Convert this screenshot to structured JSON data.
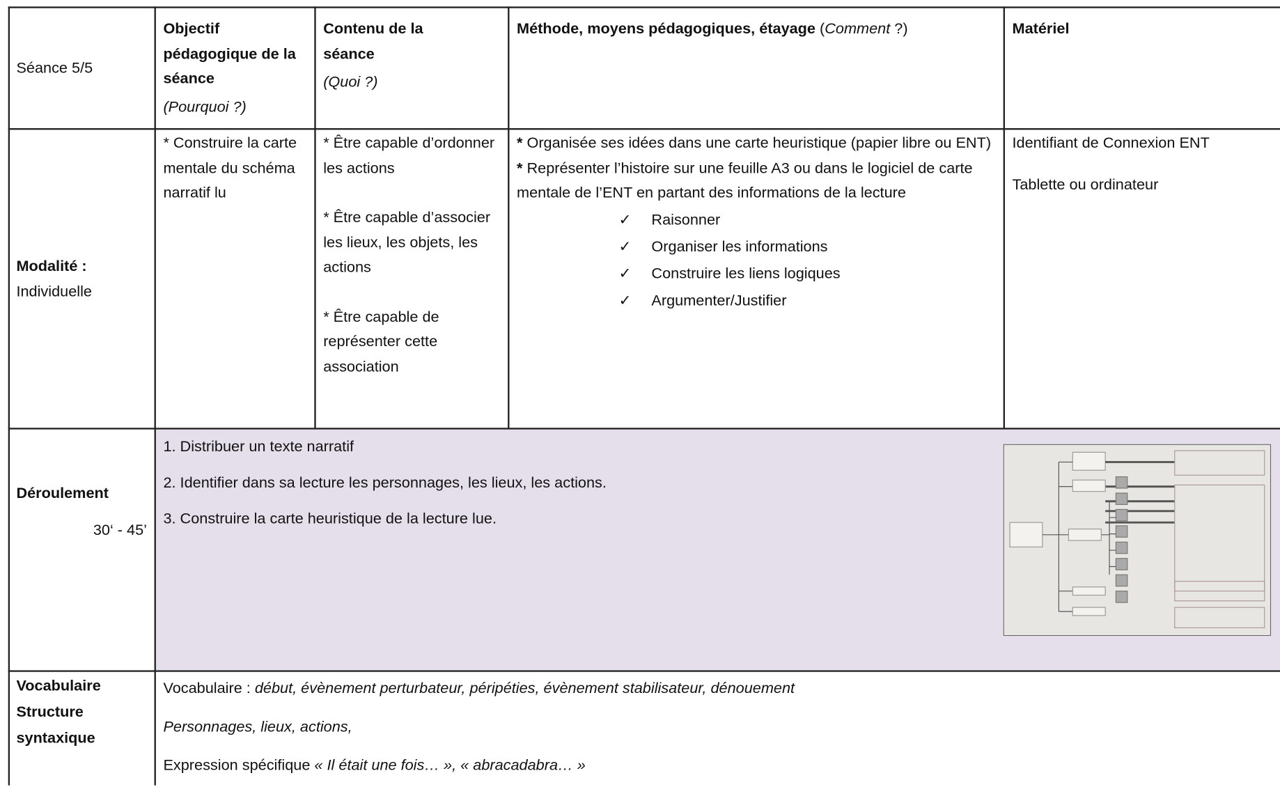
{
  "table": {
    "header": {
      "seance": "Séance 5/5",
      "objectif": {
        "title": "Objectif pédagogique de la séance",
        "note": "(Pourquoi ?)"
      },
      "contenu": {
        "title": "Contenu de la séance",
        "note": "(Quoi ?)"
      },
      "methode": {
        "title": "Méthode, moyens pédagogiques, étayage",
        "note_parts": [
          "(",
          "Comment",
          " ?)"
        ]
      },
      "materiel": "Matériel"
    },
    "modalite": {
      "label": "Modalité :",
      "value": "Individuelle",
      "objectif": "* Construire la carte mentale du schéma narratif lu",
      "contenu": [
        "* Être capable d’ordonner les actions",
        "* Être capable d’associer les lieux, les objets, les actions",
        "* Être capable de représenter cette association"
      ],
      "methode": [
        {
          "marker": "*",
          "text": " Organisée ses idées dans une carte heuristique (papier libre ou ENT)"
        },
        {
          "marker": "*",
          "text": " Représenter l’histoire sur une feuille A3 ou dans le logiciel de carte mentale de l’ENT en partant des informations de la lecture"
        }
      ],
      "checks": {
        "marker": "✓",
        "items": [
          "Raisonner",
          "Organiser les informations",
          "Construire les liens logiques",
          "Argumenter/Justifier"
        ]
      },
      "materiel": [
        "Identifiant de Connexion ENT",
        "Tablette ou ordinateur"
      ]
    },
    "deroulement": {
      "label": "Déroulement",
      "duration": "30‘ - 45’",
      "steps": [
        "1. Distribuer un texte narratif",
        "2.  Identifier dans sa lecture les personnages, les lieux, les actions.",
        "3. Construire la carte heuristique de la lecture lue."
      ]
    },
    "vocabulaire": {
      "label": [
        "Vocabulaire",
        "Structure",
        "syntaxique"
      ],
      "line1": {
        "prefix": "Vocabulaire : ",
        "words": "début, évènement perturbateur, péripéties, évènement stabilisateur, dénouement"
      },
      "line2": "Personnages, lieux, actions,",
      "line3": {
        "prefix": "Expression spécifique ",
        "words": "« Il était une fois… », « abracadabra… »"
      }
    }
  }
}
